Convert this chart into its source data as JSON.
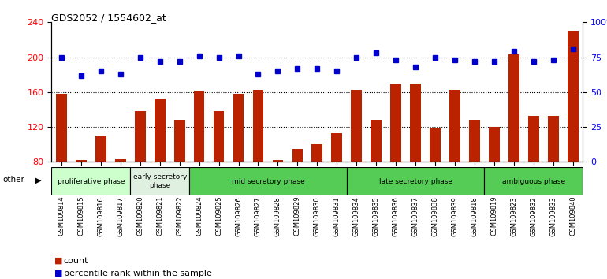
{
  "title": "GDS2052 / 1554602_at",
  "samples": [
    "GSM109814",
    "GSM109815",
    "GSM109816",
    "GSM109817",
    "GSM109820",
    "GSM109821",
    "GSM109822",
    "GSM109824",
    "GSM109825",
    "GSM109826",
    "GSM109827",
    "GSM109828",
    "GSM109829",
    "GSM109830",
    "GSM109831",
    "GSM109834",
    "GSM109835",
    "GSM109836",
    "GSM109837",
    "GSM109838",
    "GSM109839",
    "GSM109818",
    "GSM109819",
    "GSM109823",
    "GSM109832",
    "GSM109833",
    "GSM109840"
  ],
  "counts": [
    158,
    82,
    110,
    83,
    138,
    153,
    128,
    161,
    138,
    158,
    163,
    82,
    95,
    100,
    113,
    163,
    128,
    170,
    170,
    118,
    163,
    128,
    120,
    203,
    133,
    133,
    230
  ],
  "percentiles": [
    75,
    62,
    65,
    63,
    75,
    72,
    72,
    76,
    75,
    76,
    63,
    65,
    67,
    67,
    65,
    75,
    78,
    73,
    68,
    75,
    73,
    72,
    72,
    79,
    72,
    73,
    81
  ],
  "phase_defs": [
    {
      "name": "proliferative phase",
      "start": 0,
      "end": 3,
      "color": "#ccffcc"
    },
    {
      "name": "early secretory\nphase",
      "start": 4,
      "end": 6,
      "color": "#e0f0e0"
    },
    {
      "name": "mid secretory phase",
      "start": 7,
      "end": 14,
      "color": "#55cc55"
    },
    {
      "name": "late secretory phase",
      "start": 15,
      "end": 21,
      "color": "#55cc55"
    },
    {
      "name": "ambiguous phase",
      "start": 22,
      "end": 26,
      "color": "#55cc55"
    }
  ],
  "ylim_left": [
    80,
    240
  ],
  "ylim_right": [
    0,
    100
  ],
  "yticks_left": [
    80,
    120,
    160,
    200,
    240
  ],
  "yticks_right": [
    0,
    25,
    50,
    75,
    100
  ],
  "bar_color": "#bb2200",
  "dot_color": "#0000cc",
  "bg_color": "#ffffff",
  "other_label": "other"
}
